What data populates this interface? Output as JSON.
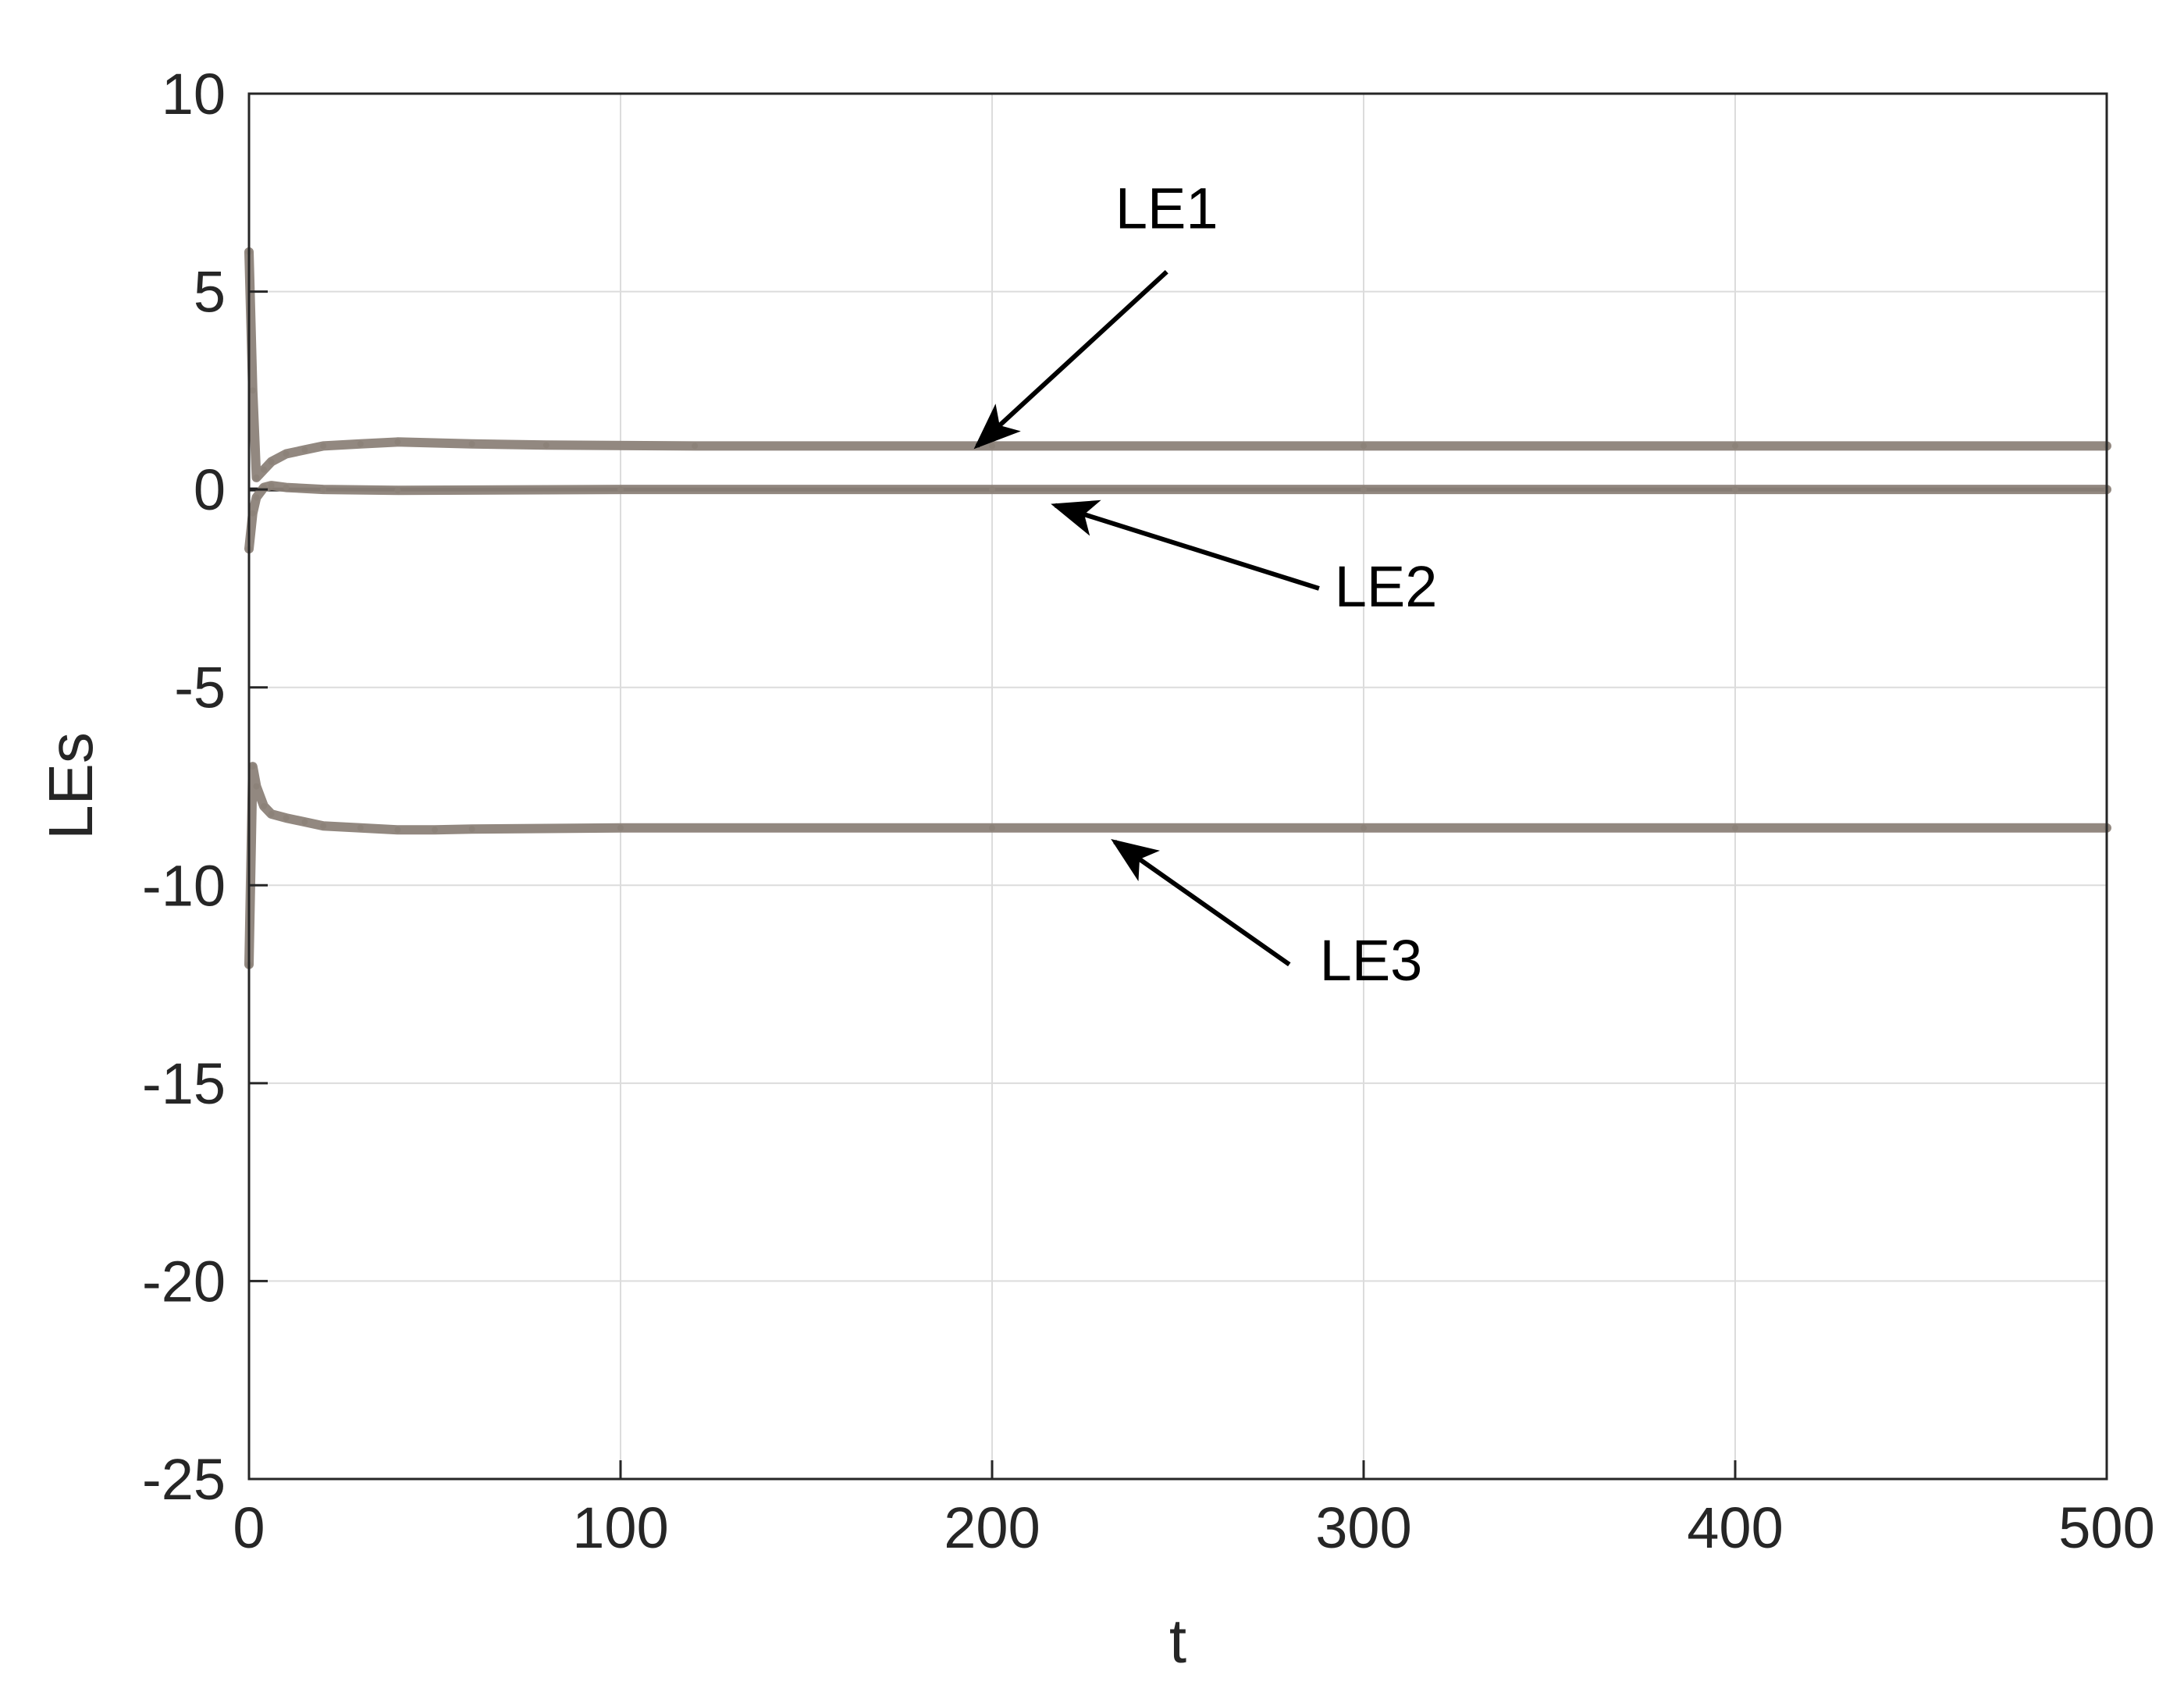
{
  "chart_data": {
    "type": "line",
    "xlabel": "t",
    "ylabel": "LEs",
    "xlim": [
      0,
      500
    ],
    "ylim": [
      -25,
      10
    ],
    "xticks": [
      0,
      100,
      200,
      300,
      400,
      500
    ],
    "yticks": [
      10,
      5,
      0,
      -5,
      -10,
      -15,
      -20,
      -25
    ],
    "grid": true,
    "colors": {
      "series": "#8c8279",
      "zero_line": "#1a1a1a",
      "grid": "#dcdcdc",
      "axes": "#262626",
      "arrow": "#000000"
    },
    "series": [
      {
        "name": "LE1",
        "x": [
          0,
          1,
          2,
          4,
          6,
          10,
          15,
          20,
          30,
          40,
          60,
          80,
          120,
          200,
          300,
          400,
          500
        ],
        "y": [
          6.0,
          2.5,
          0.3,
          0.5,
          0.7,
          0.9,
          1.0,
          1.1,
          1.15,
          1.2,
          1.15,
          1.12,
          1.1,
          1.1,
          1.1,
          1.1,
          1.1
        ]
      },
      {
        "name": "LE2",
        "x": [
          0,
          1,
          2,
          4,
          6,
          10,
          20,
          40,
          100,
          200,
          300,
          400,
          500
        ],
        "y": [
          -1.5,
          -0.6,
          -0.2,
          0.05,
          0.1,
          0.05,
          0.0,
          -0.02,
          0.0,
          0.0,
          0.0,
          0.0,
          0.0
        ]
      },
      {
        "name": "LE3",
        "x": [
          0,
          1,
          2,
          4,
          6,
          10,
          15,
          20,
          30,
          40,
          50,
          60,
          100,
          200,
          300,
          400,
          500
        ],
        "y": [
          -12.0,
          -7.0,
          -7.5,
          -8.0,
          -8.2,
          -8.3,
          -8.4,
          -8.5,
          -8.55,
          -8.6,
          -8.6,
          -8.58,
          -8.55,
          -8.55,
          -8.55,
          -8.55,
          -8.55
        ]
      }
    ],
    "annotations": [
      {
        "text": "LE1",
        "label_at": [
          247,
          6.6
        ],
        "arrow_from": [
          247,
          5.5
        ],
        "arrow_to": [
          196,
          1.1
        ]
      },
      {
        "text": "LE2",
        "label_at": [
          306,
          -2.95
        ],
        "arrow_from": [
          288,
          -2.5
        ],
        "arrow_to": [
          217,
          -0.4
        ]
      },
      {
        "text": "LE3",
        "label_at": [
          302,
          -12.4
        ],
        "arrow_from": [
          280,
          -12.0
        ],
        "arrow_to": [
          233,
          -8.9
        ]
      }
    ]
  }
}
